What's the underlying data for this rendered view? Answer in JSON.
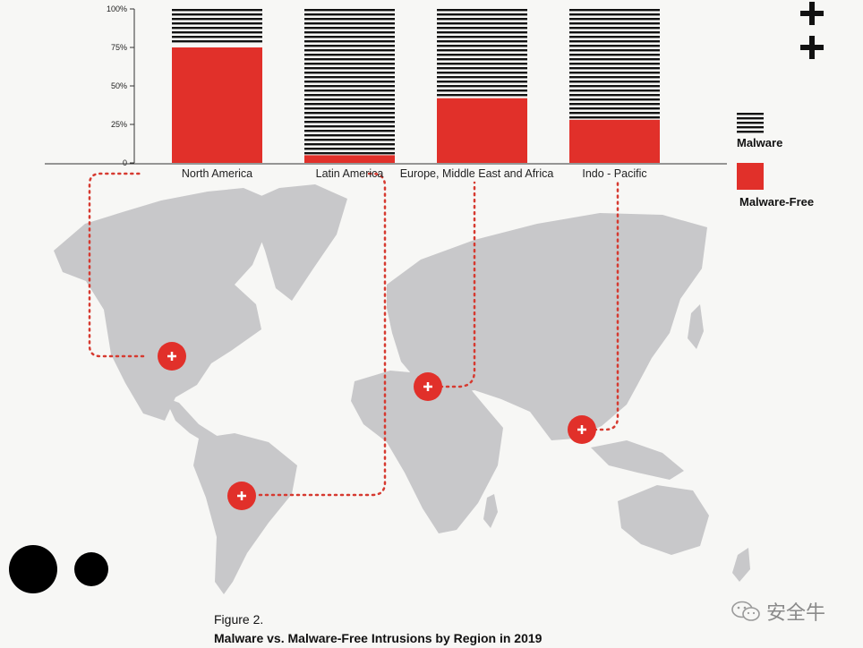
{
  "chart_data": {
    "type": "bar",
    "stacked": true,
    "categories": [
      "North America",
      "Latin America",
      "Europe, Middle East and Africa",
      "Indo - Pacific"
    ],
    "series": [
      {
        "name": "Malware-Free",
        "values": [
          75,
          5,
          42,
          28
        ]
      },
      {
        "name": "Malware",
        "values": [
          25,
          95,
          58,
          72
        ]
      }
    ],
    "ylim": [
      0,
      100
    ],
    "yticks": [
      "0",
      "25%",
      "50%",
      "75%",
      "100%"
    ],
    "legend_position": "right",
    "colors": {
      "malware_free": "#e1302a",
      "malware": "#111111",
      "map": "#c8c8ca",
      "route": "#d63a30"
    }
  },
  "legend": {
    "malware": "Malware",
    "malware_free": "Malware-Free"
  },
  "caption": {
    "figure": "Figure 2.",
    "title": "Malware vs. Malware-Free Intrusions by Region in 2019"
  },
  "watermark": "安全牛",
  "icons": [
    "plus-icon",
    "region-marker-icon",
    "wechat-icon"
  ]
}
